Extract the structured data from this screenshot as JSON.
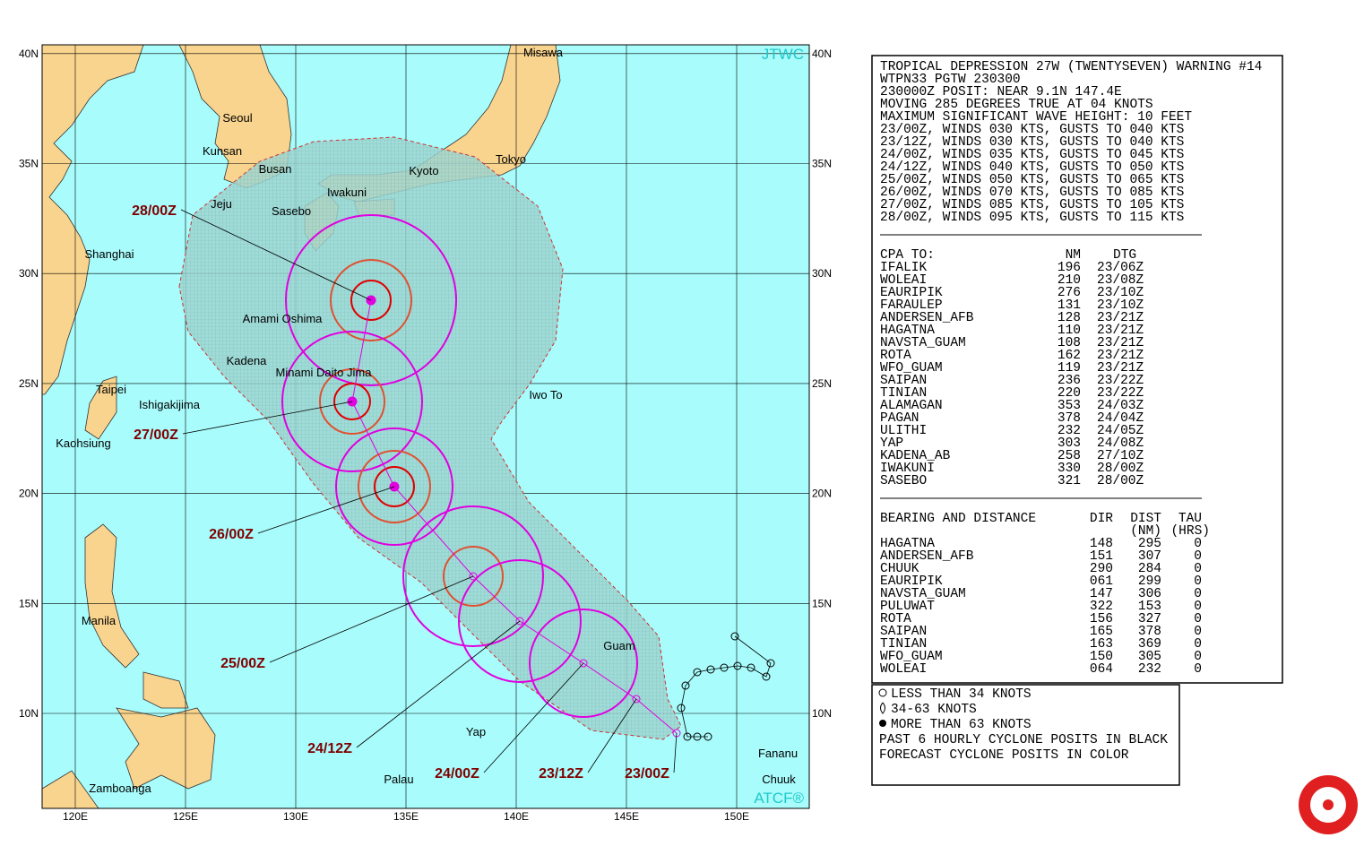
{
  "map": {
    "lon_labels": [
      "120E",
      "125E",
      "130E",
      "135E",
      "140E",
      "145E",
      "150E"
    ],
    "lat_labels": [
      "10N",
      "15N",
      "20N",
      "25N",
      "30N",
      "35N",
      "40N"
    ],
    "places": [
      "Misawa",
      "Seoul",
      "Kunsan",
      "Busan",
      "Tokyo",
      "Kyoto",
      "Iwakuni",
      "Jeju",
      "Sasebo",
      "Shanghai",
      "Amami Oshima",
      "Kadena",
      "Minami Daito Jima",
      "Taipei",
      "Iwo To",
      "Ishigakijima",
      "Kaohsiung",
      "Manila",
      "Guam",
      "Yap",
      "Fananu",
      "Chuuk",
      "Palau",
      "Zamboanga"
    ],
    "agency": "JTWC",
    "system": "ATCF®",
    "forecast_labels": [
      "28/00Z",
      "27/00Z",
      "26/00Z",
      "25/00Z",
      "24/12Z",
      "24/00Z",
      "23/12Z",
      "23/00Z"
    ]
  },
  "warning": {
    "lines": [
      "TROPICAL DEPRESSION 27W (TWENTYSEVEN) WARNING #14",
      "WTPN33 PGTW 230300",
      "230000Z POSIT: NEAR 9.1N 147.4E",
      "MOVING 285 DEGREES TRUE AT 04 KNOTS",
      "MAXIMUM SIGNIFICANT WAVE HEIGHT: 10 FEET",
      "23/00Z, WINDS 030 KTS, GUSTS TO 040 KTS",
      "23/12Z, WINDS 030 KTS, GUSTS TO 040 KTS",
      "24/00Z, WINDS 035 KTS, GUSTS TO 045 KTS",
      "24/12Z, WINDS 040 KTS, GUSTS TO 050 KTS",
      "25/00Z, WINDS 050 KTS, GUSTS TO 065 KTS",
      "26/00Z, WINDS 070 KTS, GUSTS TO 085 KTS",
      "27/00Z, WINDS 085 KTS, GUSTS TO 105 KTS",
      "28/00Z, WINDS 095 KTS, GUSTS TO 115 KTS"
    ],
    "cpa": {
      "title": "CPA TO:",
      "columns": [
        "NM",
        "DTG"
      ],
      "rows": [
        [
          "IFALIK",
          "196",
          "23/06Z"
        ],
        [
          "WOLEAI",
          "210",
          "23/08Z"
        ],
        [
          "EAURIPIK",
          "276",
          "23/10Z"
        ],
        [
          "FARAULEP",
          "131",
          "23/10Z"
        ],
        [
          "ANDERSEN_AFB",
          "128",
          "23/21Z"
        ],
        [
          "HAGATNA",
          "110",
          "23/21Z"
        ],
        [
          "NAVSTA_GUAM",
          "108",
          "23/21Z"
        ],
        [
          "ROTA",
          "162",
          "23/21Z"
        ],
        [
          "WFO_GUAM",
          "119",
          "23/21Z"
        ],
        [
          "SAIPAN",
          "236",
          "23/22Z"
        ],
        [
          "TINIAN",
          "220",
          "23/22Z"
        ],
        [
          "ALAMAGAN",
          "353",
          "24/03Z"
        ],
        [
          "PAGAN",
          "378",
          "24/04Z"
        ],
        [
          "ULITHI",
          "232",
          "24/05Z"
        ],
        [
          "YAP",
          "303",
          "24/08Z"
        ],
        [
          "KADENA_AB",
          "258",
          "27/10Z"
        ],
        [
          "IWAKUNI",
          "330",
          "28/00Z"
        ],
        [
          "SASEBO",
          "321",
          "28/00Z"
        ]
      ]
    },
    "bearing": {
      "title": "BEARING AND DISTANCE",
      "columns": [
        "DIR",
        "DIST",
        "TAU"
      ],
      "units": [
        "(NM)",
        "(HRS)"
      ],
      "rows": [
        [
          "HAGATNA",
          "148",
          "295",
          "0"
        ],
        [
          "ANDERSEN_AFB",
          "151",
          "307",
          "0"
        ],
        [
          "CHUUK",
          "290",
          "284",
          "0"
        ],
        [
          "EAURIPIK",
          "061",
          "299",
          "0"
        ],
        [
          "NAVSTA_GUAM",
          "147",
          "306",
          "0"
        ],
        [
          "PULUWAT",
          "322",
          "153",
          "0"
        ],
        [
          "ROTA",
          "156",
          "327",
          "0"
        ],
        [
          "SAIPAN",
          "165",
          "378",
          "0"
        ],
        [
          "TINIAN",
          "163",
          "369",
          "0"
        ],
        [
          "WFO_GUAM",
          "150",
          "305",
          "0"
        ],
        [
          "WOLEAI",
          "064",
          "232",
          "0"
        ]
      ]
    }
  },
  "legend": {
    "lines": [
      "LESS THAN 34 KNOTS",
      "34-63 KNOTS",
      "MORE THAN 63 KNOTS",
      "PAST 6 HOURLY CYCLONE POSITS IN BLACK",
      "FORECAST CYCLONE POSITS IN COLOR"
    ]
  }
}
